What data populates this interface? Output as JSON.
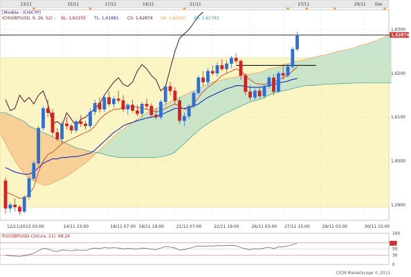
{
  "chart_data": [
    {
      "type": "candlestick",
      "title": "[Modèle : ICHICYP]",
      "legend": {
        "main": "ICH(GBP/USD, 9, 26, 52) -",
        "items": [
          {
            "label": "SL: 1,62155",
            "color": "#cc0000"
          },
          {
            "label": "TL: 1,61881",
            "color": "#1a2ab8"
          },
          {
            "label": "CS: 1,62874",
            "color": "#4a1030"
          },
          {
            "label": "SA: 1,62510",
            "color": "#f0a04a"
          },
          {
            "label": "SB: 1,61782",
            "color": "#3a9a98"
          }
        ]
      },
      "y_ticks": [
        {
          "value": 1.59,
          "label": "1,5900"
        },
        {
          "value": 1.6,
          "label": "1,6000"
        },
        {
          "value": 1.61,
          "label": "1,6100"
        },
        {
          "value": 1.62,
          "label": "1,6200"
        },
        {
          "value": 1.63,
          "label": "1,6300"
        }
      ],
      "ylim": [
        1.5865,
        1.6345
      ],
      "last_price": {
        "value": 1.62874,
        "label": "1,62874"
      },
      "x_ticks": [
        "12/11/2013 03:00",
        "14/11 23:00",
        "18/11 07:00",
        "19/11 19:00",
        "21/11 07:00",
        "22/11 19:00",
        "26/11 03:00",
        "27/11 15:00",
        "29/11 03:00",
        "30/11 15:00"
      ],
      "date_ticks": [
        "13/11",
        "15/11",
        "17/11",
        "19/11",
        "21/11",
        "27/11",
        "29/11",
        "Dec"
      ],
      "candles": [
        [
          1.5955,
          1.5962,
          1.588,
          1.5892
        ],
        [
          1.5892,
          1.5905,
          1.5882,
          1.59
        ],
        [
          1.59,
          1.5915,
          1.5885,
          1.5895
        ],
        [
          1.5895,
          1.59,
          1.5878,
          1.5885
        ],
        [
          1.5885,
          1.5922,
          1.588,
          1.5918
        ],
        [
          1.5918,
          1.5965,
          1.5912,
          1.596
        ],
        [
          1.596,
          1.6,
          1.5955,
          1.5995
        ],
        [
          1.5995,
          1.608,
          1.599,
          1.6075
        ],
        [
          1.6075,
          1.6125,
          1.607,
          1.612
        ],
        [
          1.612,
          1.614,
          1.61,
          1.611
        ],
        [
          1.611,
          1.6118,
          1.6055,
          1.6065
        ],
        [
          1.6065,
          1.6075,
          1.6045,
          1.605
        ],
        [
          1.605,
          1.609,
          1.604,
          1.6085
        ],
        [
          1.6085,
          1.61,
          1.6072,
          1.608
        ],
        [
          1.608,
          1.6085,
          1.6062,
          1.607
        ],
        [
          1.607,
          1.6095,
          1.6065,
          1.609
        ],
        [
          1.609,
          1.6105,
          1.6078,
          1.6085
        ],
        [
          1.6085,
          1.6092,
          1.6072,
          1.608
        ],
        [
          1.608,
          1.612,
          1.6075,
          1.6112
        ],
        [
          1.6112,
          1.614,
          1.6105,
          1.6132
        ],
        [
          1.6132,
          1.6145,
          1.611,
          1.6118
        ],
        [
          1.6118,
          1.6152,
          1.6112,
          1.6145
        ],
        [
          1.6145,
          1.6158,
          1.6125,
          1.613
        ],
        [
          1.613,
          1.6148,
          1.6122,
          1.6142
        ],
        [
          1.6142,
          1.616,
          1.6132,
          1.6138
        ],
        [
          1.6138,
          1.615,
          1.6112,
          1.6118
        ],
        [
          1.6118,
          1.6132,
          1.6105,
          1.6128
        ],
        [
          1.6128,
          1.614,
          1.611,
          1.6115
        ],
        [
          1.6115,
          1.6128,
          1.6102,
          1.6108
        ],
        [
          1.6108,
          1.6135,
          1.61,
          1.613
        ],
        [
          1.613,
          1.6142,
          1.6118,
          1.6125
        ],
        [
          1.6125,
          1.6132,
          1.61,
          1.6105
        ],
        [
          1.6105,
          1.612,
          1.6095,
          1.61
        ],
        [
          1.61,
          1.614,
          1.6095,
          1.6135
        ],
        [
          1.6135,
          1.6175,
          1.6128,
          1.617
        ],
        [
          1.617,
          1.618,
          1.615,
          1.616
        ],
        [
          1.616,
          1.6168,
          1.613,
          1.6138
        ],
        [
          1.6138,
          1.6145,
          1.6085,
          1.6092
        ],
        [
          1.6092,
          1.611,
          1.608,
          1.6102
        ],
        [
          1.6102,
          1.613,
          1.6095,
          1.6125
        ],
        [
          1.6125,
          1.616,
          1.612,
          1.6155
        ],
        [
          1.6155,
          1.6195,
          1.615,
          1.619
        ],
        [
          1.619,
          1.6205,
          1.617,
          1.618
        ],
        [
          1.618,
          1.6212,
          1.6172,
          1.6205
        ],
        [
          1.6205,
          1.6218,
          1.6195,
          1.62
        ],
        [
          1.62,
          1.6225,
          1.6192,
          1.6218
        ],
        [
          1.6218,
          1.6232,
          1.6205,
          1.621
        ],
        [
          1.621,
          1.623,
          1.62,
          1.6222
        ],
        [
          1.6222,
          1.624,
          1.6212,
          1.6235
        ],
        [
          1.6235,
          1.6245,
          1.6222,
          1.6228
        ],
        [
          1.6228,
          1.6232,
          1.6185,
          1.6195
        ],
        [
          1.6195,
          1.62,
          1.615,
          1.6158
        ],
        [
          1.6158,
          1.6172,
          1.6138,
          1.6145
        ],
        [
          1.6145,
          1.6165,
          1.614,
          1.616
        ],
        [
          1.616,
          1.6168,
          1.6142,
          1.6148
        ],
        [
          1.6148,
          1.6175,
          1.6142,
          1.617
        ],
        [
          1.617,
          1.6195,
          1.6165,
          1.619
        ],
        [
          1.619,
          1.6198,
          1.615,
          1.6158
        ],
        [
          1.6158,
          1.6205,
          1.6155,
          1.62
        ],
        [
          1.62,
          1.6218,
          1.6185,
          1.6195
        ],
        [
          1.6195,
          1.6222,
          1.619,
          1.6215
        ],
        [
          1.6215,
          1.626,
          1.621,
          1.6255
        ],
        [
          1.6255,
          1.6295,
          1.625,
          1.6287
        ]
      ],
      "tenkan": [
        1.593,
        1.5925,
        1.592,
        1.5915,
        1.5915,
        1.5925,
        1.594,
        1.5975,
        1.6,
        1.6015,
        1.602,
        1.603,
        1.604,
        1.6045,
        1.605,
        1.6055,
        1.606,
        1.6065,
        1.607,
        1.608,
        1.6095,
        1.6105,
        1.6112,
        1.6118,
        1.6118,
        1.6122,
        1.6122,
        1.6125,
        1.6122,
        1.612,
        1.6118,
        1.6115,
        1.6112,
        1.6115,
        1.612,
        1.6125,
        1.613,
        1.6125,
        1.6118,
        1.612,
        1.613,
        1.6145,
        1.6158,
        1.6168,
        1.6175,
        1.6185,
        1.6195,
        1.62,
        1.6205,
        1.621,
        1.6205,
        1.6195,
        1.6185,
        1.6178,
        1.6175,
        1.6175,
        1.6178,
        1.618,
        1.6185,
        1.619,
        1.6195,
        1.6205,
        1.6215
      ],
      "kijun": [
        1.5985,
        1.598,
        1.5975,
        1.5972,
        1.597,
        1.597,
        1.5975,
        1.5985,
        1.5995,
        1.6,
        1.6005,
        1.6005,
        1.6008,
        1.6008,
        1.601,
        1.601,
        1.6012,
        1.6015,
        1.6018,
        1.6025,
        1.6035,
        1.6045,
        1.6055,
        1.6065,
        1.6072,
        1.608,
        1.6085,
        1.6088,
        1.6092,
        1.6095,
        1.6098,
        1.61,
        1.6102,
        1.6105,
        1.611,
        1.6115,
        1.612,
        1.612,
        1.612,
        1.6122,
        1.6125,
        1.613,
        1.6138,
        1.6145,
        1.615,
        1.6155,
        1.616,
        1.6165,
        1.6168,
        1.6172,
        1.6172,
        1.617,
        1.6168,
        1.6168,
        1.6168,
        1.617,
        1.6172,
        1.6175,
        1.6178,
        1.618,
        1.6182,
        1.6186,
        1.6188
      ],
      "chikou": [
        1.614,
        1.6115,
        1.612,
        1.615,
        1.6135,
        1.6145,
        1.613,
        1.615,
        1.616,
        1.613,
        1.6085,
        1.609,
        1.608,
        1.611,
        1.6095,
        1.608,
        1.6095,
        1.61,
        1.611,
        1.612,
        1.613,
        1.615,
        1.6165,
        1.618,
        1.619,
        1.6175,
        1.617,
        1.618,
        1.6205,
        1.622,
        1.621,
        1.6195,
        1.6185,
        1.616,
        1.617,
        1.621,
        1.625,
        1.628,
        1.629,
        1.63,
        1.6315,
        1.633,
        1.634
      ],
      "senkou_a": [
        1.6105,
        1.61,
        1.6095,
        1.6085,
        1.6075,
        1.606,
        1.604,
        1.602,
        1.6,
        1.5985,
        1.597,
        1.596,
        1.5955,
        1.595,
        1.5945,
        1.5945,
        1.595,
        1.5955,
        1.596,
        1.5965,
        1.5972,
        1.598,
        1.5988,
        1.5995,
        1.6005,
        1.6015,
        1.6025,
        1.6035,
        1.6045,
        1.6055,
        1.6065,
        1.6072,
        1.608,
        1.6088,
        1.6095,
        1.6102,
        1.611,
        1.6115,
        1.612,
        1.6125,
        1.613,
        1.6135,
        1.614,
        1.6145,
        1.615,
        1.6155,
        1.616,
        1.6165,
        1.617,
        1.6175,
        1.618,
        1.6182,
        1.6185,
        1.6188,
        1.619,
        1.6192,
        1.6195,
        1.6197,
        1.6198,
        1.62,
        1.6202,
        1.6205,
        1.621,
        1.6212,
        1.6215,
        1.622,
        1.6222,
        1.6225,
        1.6228,
        1.623,
        1.6232,
        1.6235,
        1.6238,
        1.624,
        1.6242,
        1.6245,
        1.6248,
        1.6251,
        1.6253,
        1.6255,
        1.6258,
        1.6262,
        1.6265,
        1.6268,
        1.6272,
        1.6275,
        1.628,
        1.6285,
        1.629
      ],
      "senkou_b": [
        1.611,
        1.611,
        1.611,
        1.611,
        1.611,
        1.611,
        1.611,
        1.6105,
        1.61,
        1.6095,
        1.609,
        1.608,
        1.6075,
        1.607,
        1.6065,
        1.606,
        1.6055,
        1.605,
        1.6045,
        1.604,
        1.6035,
        1.603,
        1.6028,
        1.6025,
        1.6022,
        1.602,
        1.6018,
        1.6015,
        1.6012,
        1.601,
        1.6008,
        1.6008,
        1.6008,
        1.6008,
        1.6008,
        1.6008,
        1.6008,
        1.6008,
        1.6008,
        1.601,
        1.6012,
        1.6015,
        1.602,
        1.603,
        1.604,
        1.605,
        1.606,
        1.607,
        1.6078,
        1.6085,
        1.6092,
        1.6098,
        1.6105,
        1.611,
        1.6115,
        1.612,
        1.6125,
        1.613,
        1.6135,
        1.6138,
        1.614,
        1.6145,
        1.615,
        1.6155,
        1.6158,
        1.616,
        1.6162,
        1.6165,
        1.6168,
        1.617,
        1.6172,
        1.6172,
        1.6173,
        1.6174,
        1.6175,
        1.6175,
        1.6176,
        1.6176,
        1.6177,
        1.6177,
        1.6178,
        1.6178,
        1.6178,
        1.6178,
        1.6178,
        1.6178,
        1.6178,
        1.6178,
        1.6178
      ],
      "horizontal_lines": [
        1.6287,
        1.6218
      ]
    },
    {
      "type": "line",
      "title": "RSI(GBP/USD-Cloture, 21): 68,26",
      "ylim": [
        0,
        100
      ],
      "y_ticks": [
        {
          "value": 100,
          "label": "100"
        },
        {
          "value": 70,
          "label": "70"
        },
        {
          "value": 50,
          "label": "50"
        },
        {
          "value": 30,
          "label": "30"
        },
        {
          "value": 0,
          "label": "0"
        }
      ],
      "values": [
        30,
        28,
        27,
        26,
        28,
        32,
        36,
        45,
        52,
        50,
        44,
        42,
        47,
        46,
        44,
        47,
        46,
        45,
        50,
        53,
        51,
        55,
        53,
        54,
        53,
        50,
        52,
        51,
        49,
        53,
        52,
        49,
        48,
        53,
        58,
        56,
        53,
        46,
        48,
        52,
        56,
        60,
        58,
        60,
        59,
        61,
        60,
        61,
        62,
        60,
        55,
        50,
        48,
        51,
        49,
        53,
        56,
        51,
        57,
        57,
        59,
        64,
        68.26
      ]
    }
  ],
  "footer": "CICM Marketscope © 2013"
}
